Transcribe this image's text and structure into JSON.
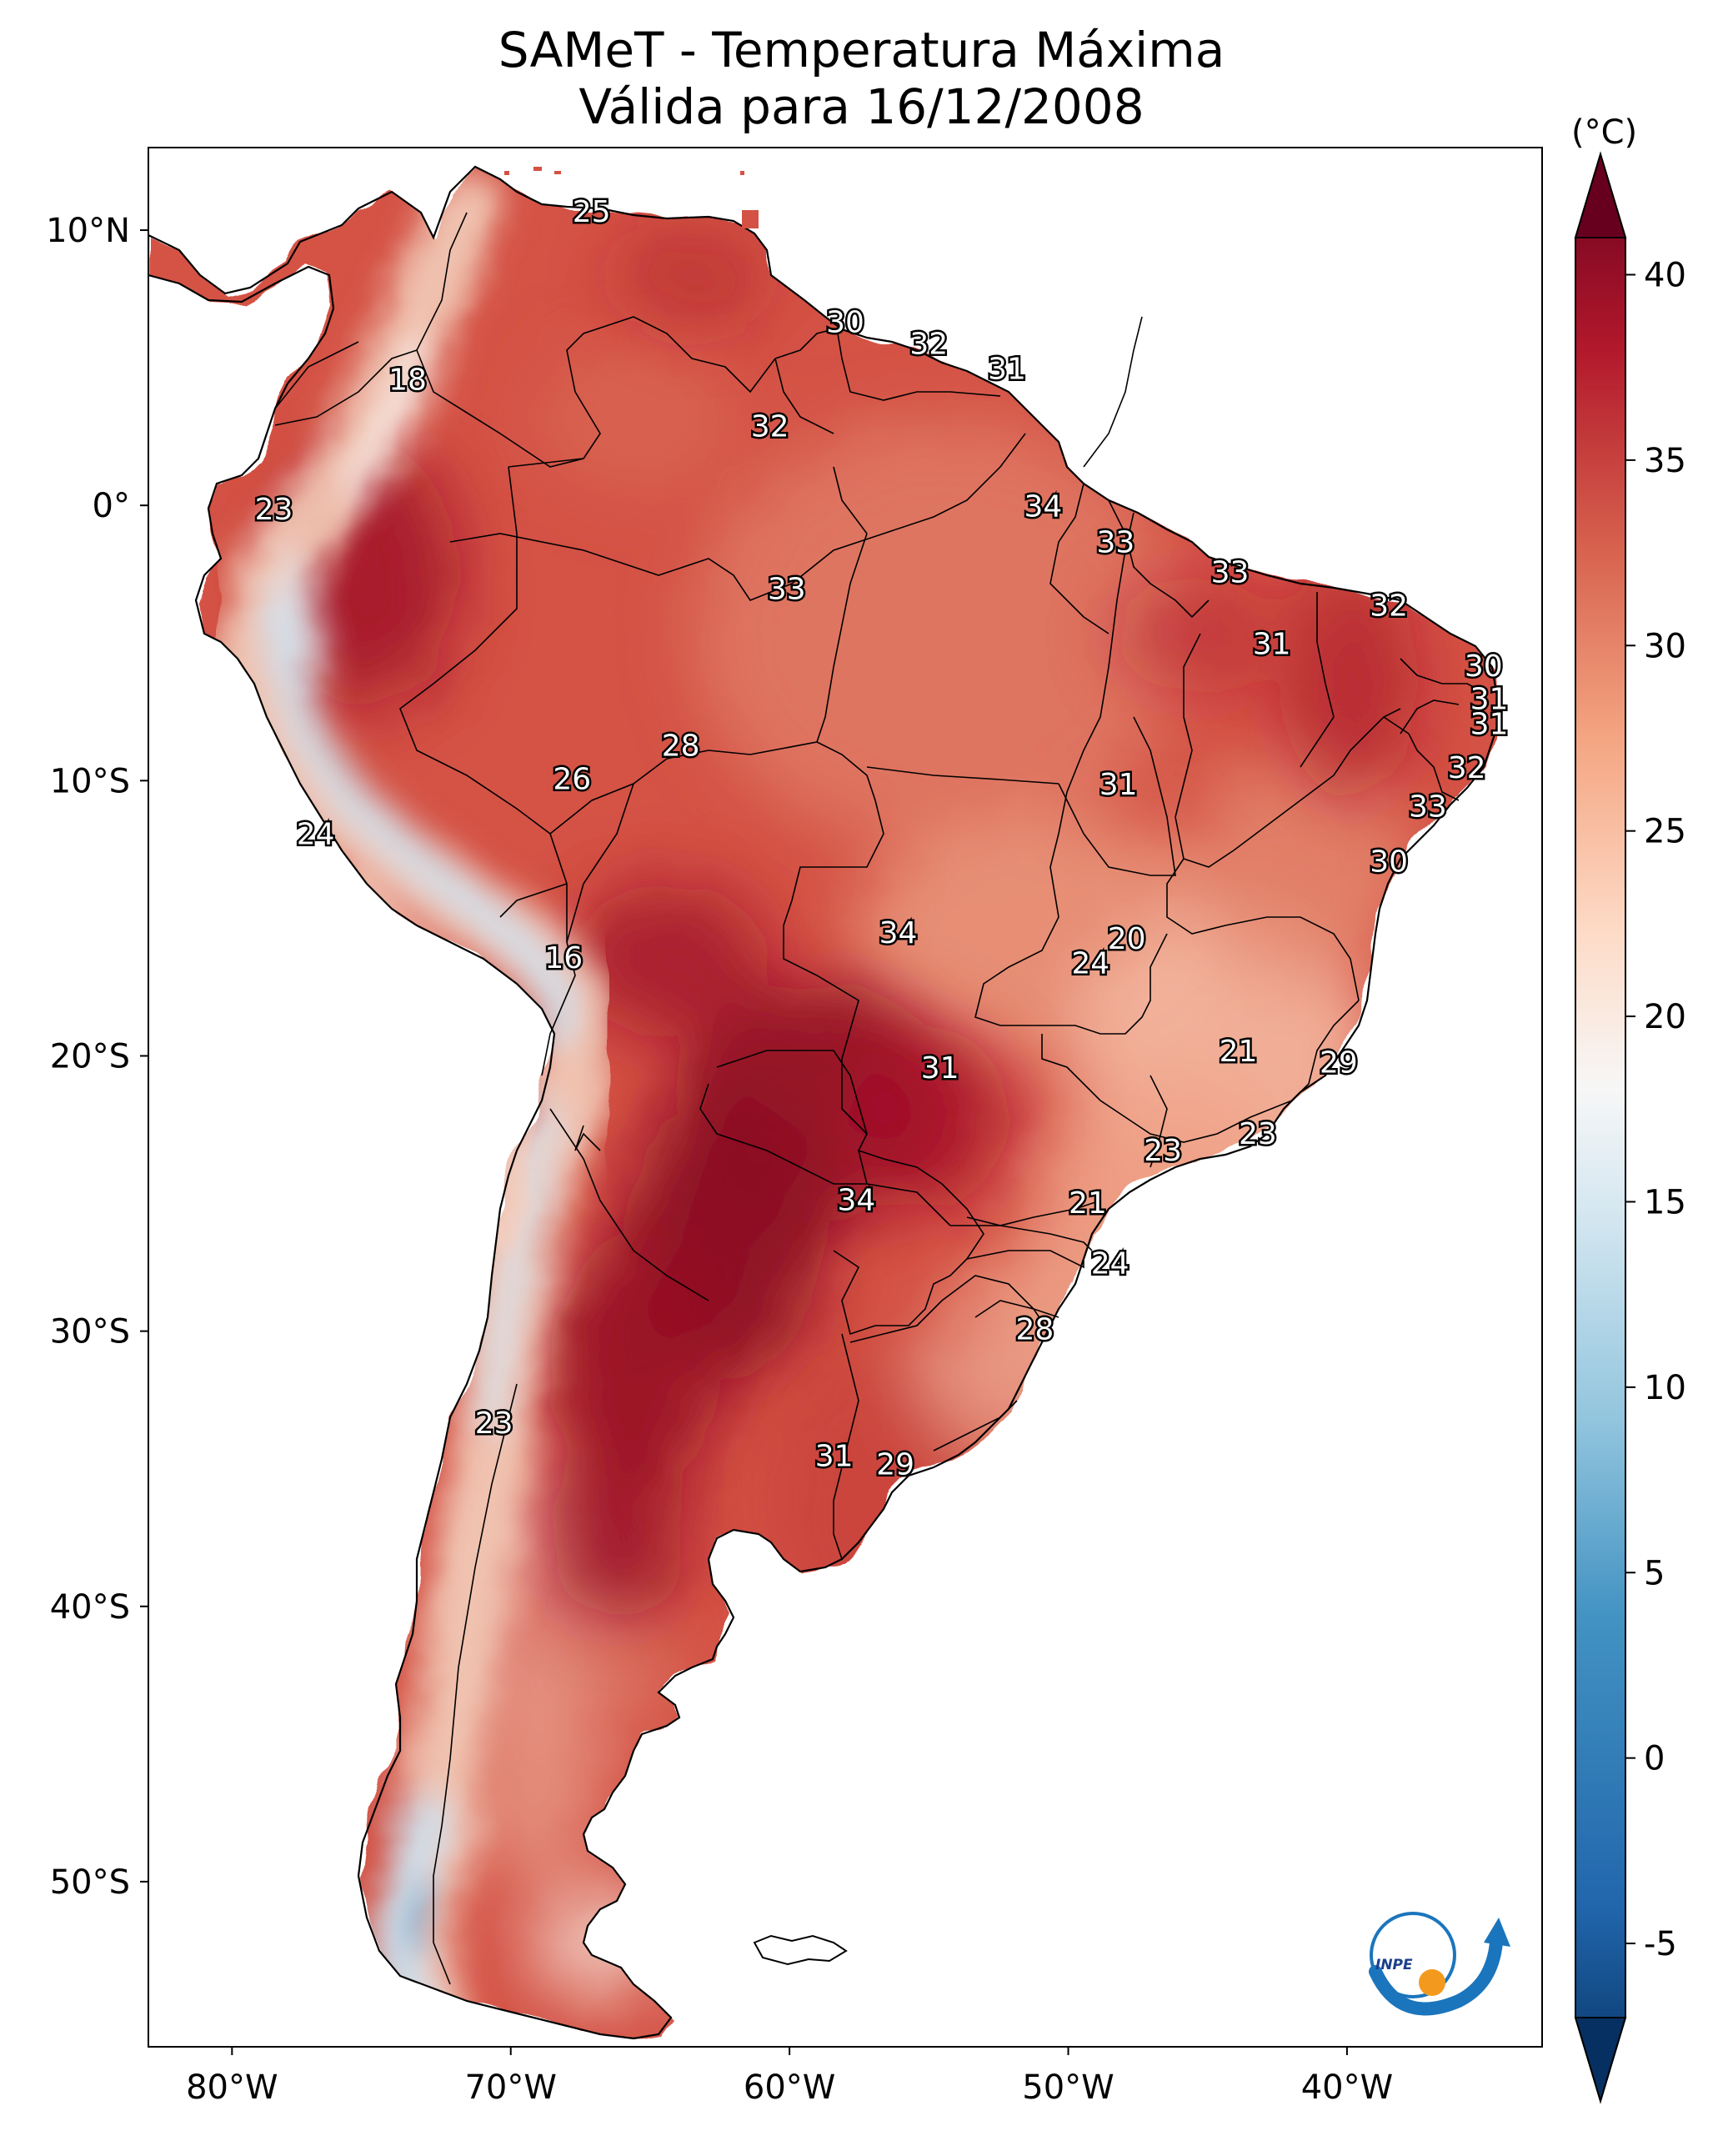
{
  "title": {
    "line1": "SAMeT - Temperatura Máxima",
    "line2": "Válida para 16/12/2008"
  },
  "colorbar": {
    "unit_label": "(°C)",
    "ticks": [
      "40",
      "35",
      "30",
      "25",
      "20",
      "15",
      "10",
      "5",
      "0",
      "-5"
    ],
    "min": -7,
    "max": 41,
    "colors": [
      "#053061",
      "#2166ac",
      "#4393c3",
      "#92c5de",
      "#d1e5f0",
      "#f7f7f7",
      "#fddbc7",
      "#f4a582",
      "#d6604d",
      "#b2182b",
      "#67001f"
    ]
  },
  "axes": {
    "lon_labels": [
      "80°W",
      "70°W",
      "60°W",
      "50°W",
      "40°W"
    ],
    "lat_labels": [
      "10°N",
      "0°",
      "10°S",
      "20°S",
      "30°S",
      "40°S",
      "50°S"
    ]
  },
  "station_labels": [
    {
      "text": "25",
      "lon": -67.1,
      "lat": 10.6
    },
    {
      "text": "18",
      "lon": -73.7,
      "lat": 4.5
    },
    {
      "text": "30",
      "lon": -58.0,
      "lat": 6.6
    },
    {
      "text": "32",
      "lon": -55.0,
      "lat": 5.8
    },
    {
      "text": "31",
      "lon": -52.2,
      "lat": 4.9
    },
    {
      "text": "32",
      "lon": -60.7,
      "lat": 2.8
    },
    {
      "text": "23",
      "lon": -78.5,
      "lat": -0.2
    },
    {
      "text": "34",
      "lon": -50.9,
      "lat": -0.1
    },
    {
      "text": "33",
      "lon": -48.3,
      "lat": -1.4
    },
    {
      "text": "33",
      "lon": -44.2,
      "lat": -2.5
    },
    {
      "text": "33",
      "lon": -60.1,
      "lat": -3.1
    },
    {
      "text": "32",
      "lon": -38.5,
      "lat": -3.7
    },
    {
      "text": "31",
      "lon": -42.7,
      "lat": -5.1
    },
    {
      "text": "30",
      "lon": -35.1,
      "lat": -5.9
    },
    {
      "text": "31",
      "lon": -34.9,
      "lat": -7.1
    },
    {
      "text": "31",
      "lon": -34.9,
      "lat": -8.0
    },
    {
      "text": "28",
      "lon": -63.9,
      "lat": -8.8
    },
    {
      "text": "26",
      "lon": -67.8,
      "lat": -10.0
    },
    {
      "text": "31",
      "lon": -48.2,
      "lat": -10.2
    },
    {
      "text": "32",
      "lon": -35.7,
      "lat": -9.6
    },
    {
      "text": "33",
      "lon": -37.1,
      "lat": -11.0
    },
    {
      "text": "24",
      "lon": -77.0,
      "lat": -12.0
    },
    {
      "text": "30",
      "lon": -38.5,
      "lat": -13.0
    },
    {
      "text": "34",
      "lon": -56.1,
      "lat": -15.6
    },
    {
      "text": "20",
      "lon": -47.9,
      "lat": -15.8
    },
    {
      "text": "24",
      "lon": -49.2,
      "lat": -16.7
    },
    {
      "text": "16",
      "lon": -68.1,
      "lat": -16.5
    },
    {
      "text": "21",
      "lon": -43.9,
      "lat": -19.9
    },
    {
      "text": "29",
      "lon": -40.3,
      "lat": -20.3
    },
    {
      "text": "31",
      "lon": -54.6,
      "lat": -20.5
    },
    {
      "text": "23",
      "lon": -43.2,
      "lat": -22.9
    },
    {
      "text": "23",
      "lon": -46.6,
      "lat": -23.5
    },
    {
      "text": "21",
      "lon": -49.3,
      "lat": -25.4
    },
    {
      "text": "34",
      "lon": -57.6,
      "lat": -25.3
    },
    {
      "text": "24",
      "lon": -48.5,
      "lat": -27.6
    },
    {
      "text": "28",
      "lon": -51.2,
      "lat": -30.0
    },
    {
      "text": "23",
      "lon": -70.6,
      "lat": -33.4
    },
    {
      "text": "31",
      "lon": -58.4,
      "lat": -34.6
    },
    {
      "text": "29",
      "lon": -56.2,
      "lat": -34.9
    }
  ],
  "logo": {
    "text": "INPE"
  }
}
